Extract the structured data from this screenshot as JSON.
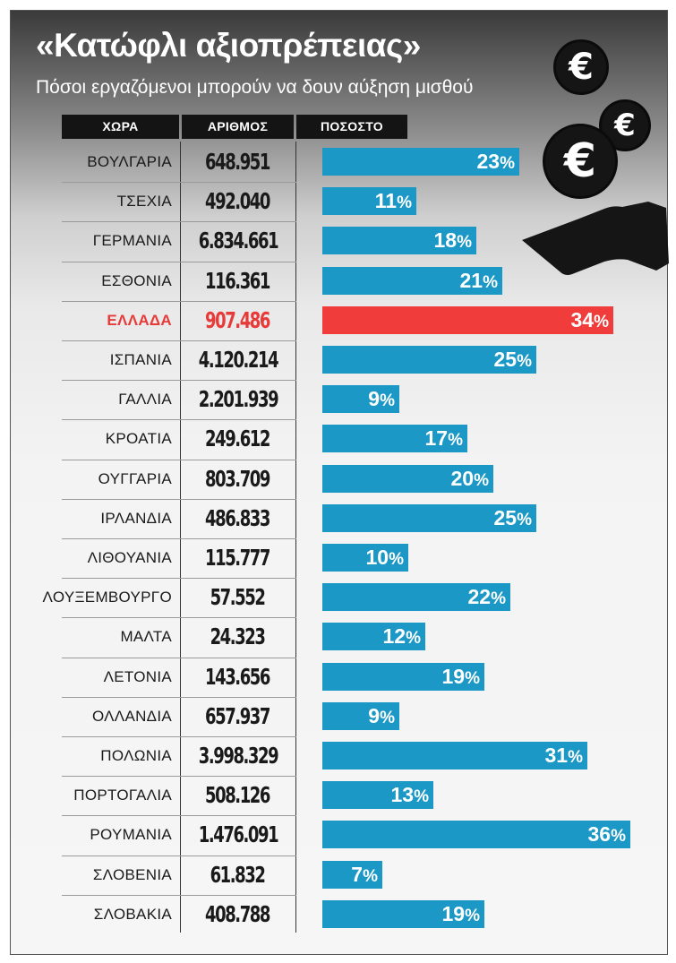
{
  "title": "«Κατώφλι αξιοπρέπειας»",
  "subtitle": "Πόσοι εργαζόμενοι μπορούν να δουν αύξηση μισθού",
  "headers": {
    "country": "ΧΩΡΑ",
    "number": "ΑΡΙΘΜΟΣ",
    "percent": "ΠΟΣΟΣΤΟ"
  },
  "icons": {
    "coin_symbol": "€"
  },
  "colors": {
    "bar": "#1b98c6",
    "highlight": "#f03c3a",
    "highlight_text": "#e63b39"
  },
  "chart_data": {
    "type": "bar",
    "orientation": "horizontal",
    "columns": [
      "ΧΩΡΑ",
      "ΑΡΙΘΜΟΣ",
      "ΠΟΣΟΣΤΟ"
    ],
    "percent_suffix": "%",
    "highlight": "ΕΛΛΑΔΑ",
    "rows": [
      {
        "country": "ΒΟΥΛΓΑΡΙΑ",
        "number": "648.951",
        "percent": 23
      },
      {
        "country": "ΤΣΕΧΙΑ",
        "number": "492.040",
        "percent": 11
      },
      {
        "country": "ΓΕΡΜΑΝΙΑ",
        "number": "6.834.661",
        "percent": 18
      },
      {
        "country": "ΕΣΘΟΝΙΑ",
        "number": "116.361",
        "percent": 21
      },
      {
        "country": "ΕΛΛΑΔΑ",
        "number": "907.486",
        "percent": 34
      },
      {
        "country": "ΙΣΠΑΝΙΑ",
        "number": "4.120.214",
        "percent": 25
      },
      {
        "country": "ΓΑΛΛΙΑ",
        "number": "2.201.939",
        "percent": 9
      },
      {
        "country": "ΚΡΟΑΤΙΑ",
        "number": "249.612",
        "percent": 17
      },
      {
        "country": "ΟΥΓΓΑΡΙΑ",
        "number": "803.709",
        "percent": 20
      },
      {
        "country": "ΙΡΛΑΝΔΙΑ",
        "number": "486.833",
        "percent": 25
      },
      {
        "country": "ΛΙΘΟΥΑΝΙΑ",
        "number": "115.777",
        "percent": 10
      },
      {
        "country": "ΛΟΥΞΕΜΒΟΥΡΓΟ",
        "number": "57.552",
        "percent": 22
      },
      {
        "country": "ΜΑΛΤΑ",
        "number": "24.323",
        "percent": 12
      },
      {
        "country": "ΛΕΤΟΝΙΑ",
        "number": "143.656",
        "percent": 19
      },
      {
        "country": "ΟΛΛΑΝΔΙΑ",
        "number": "657.937",
        "percent": 9
      },
      {
        "country": "ΠΟΛΩΝΙΑ",
        "number": "3.998.329",
        "percent": 31
      },
      {
        "country": "ΠΟΡΤΟΓΑΛΙΑ",
        "number": "508.126",
        "percent": 13
      },
      {
        "country": "ΡΟΥΜΑΝΙΑ",
        "number": "1.476.091",
        "percent": 36
      },
      {
        "country": "ΣΛΟΒΕΝΙΑ",
        "number": "61.832",
        "percent": 7
      },
      {
        "country": "ΣΛΟΒΑΚΙΑ",
        "number": "408.788",
        "percent": 19
      }
    ]
  }
}
